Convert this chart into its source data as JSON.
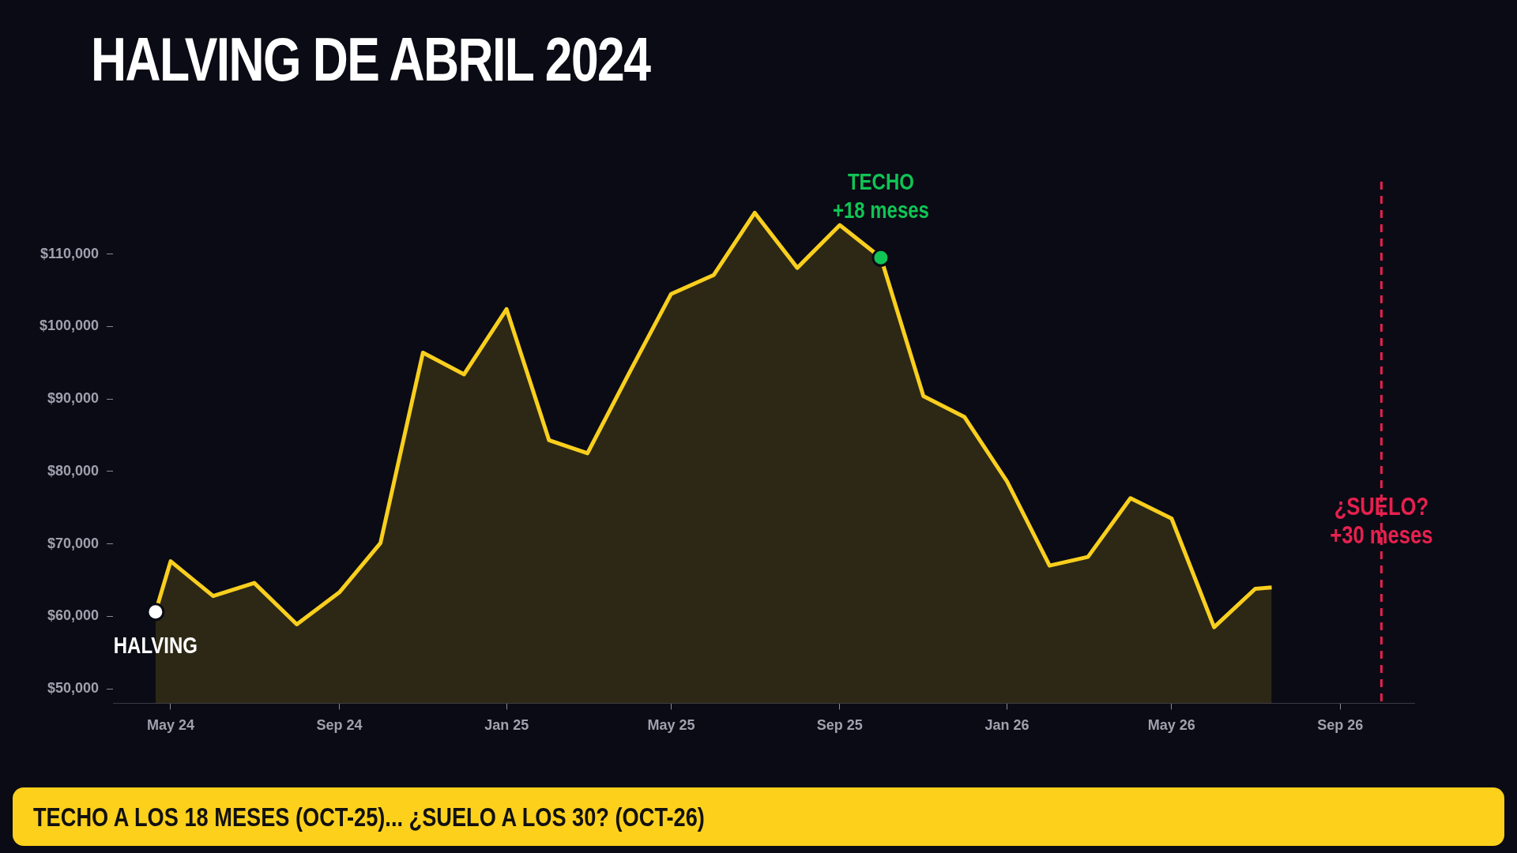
{
  "chart_data": {
    "type": "area",
    "title": "HALVING DE ABRIL 2024",
    "x": [
      "2024-04-20",
      "2024-05-01",
      "2024-06-01",
      "2024-07-01",
      "2024-08-01",
      "2024-09-01",
      "2024-10-01",
      "2024-11-01",
      "2024-12-01",
      "2025-01-01",
      "2025-02-01",
      "2025-03-01",
      "2025-04-01",
      "2025-05-01",
      "2025-06-01",
      "2025-07-01",
      "2025-08-01",
      "2025-09-01",
      "2025-10-01",
      "2025-11-01",
      "2025-12-01",
      "2026-01-01",
      "2026-02-01",
      "2026-03-01",
      "2026-04-01",
      "2026-05-01",
      "2026-06-01",
      "2026-07-01",
      "2026-07-13"
    ],
    "series": [
      {
        "color": "#f9cf1e",
        "values": [
          60600,
          67600,
          62800,
          64600,
          58900,
          63300,
          70100,
          96400,
          93400,
          102400,
          84300,
          82500,
          93800,
          104500,
          107100,
          115700,
          108100,
          114000,
          109500,
          90400,
          87500,
          78600,
          67000,
          68200,
          76300,
          73500,
          58500,
          63800,
          64000
        ]
      }
    ],
    "xlim": [
      "2024-03-20",
      "2026-10-25"
    ],
    "xticks": [
      {
        "value": "2024-05-01",
        "label": "May 24"
      },
      {
        "value": "2024-09-01",
        "label": "Sep 24"
      },
      {
        "value": "2025-01-01",
        "label": "Jan 25"
      },
      {
        "value": "2025-05-01",
        "label": "May 25"
      },
      {
        "value": "2025-09-01",
        "label": "Sep 25"
      },
      {
        "value": "2026-01-01",
        "label": "Jan 26"
      },
      {
        "value": "2026-05-01",
        "label": "May 26"
      },
      {
        "value": "2026-09-01",
        "label": "Sep 26"
      }
    ],
    "ylim": [
      48000,
      120000
    ],
    "yticks": [
      {
        "value": 50000,
        "label": "$50,000"
      },
      {
        "value": 60000,
        "label": "$60,000"
      },
      {
        "value": 70000,
        "label": "$70,000"
      },
      {
        "value": 80000,
        "label": "$80,000"
      },
      {
        "value": 90000,
        "label": "$90,000"
      },
      {
        "value": 100000,
        "label": "$100,000"
      },
      {
        "value": 110000,
        "label": "$110,000"
      }
    ],
    "grid": false,
    "legend": false,
    "marker": "none",
    "line_style": "solid",
    "ref_lines": [
      {
        "axis": "x",
        "value": "2026-10-01",
        "label": "¿SUELO?\n+30 meses",
        "color": "#e8204f",
        "line_style": "dashed"
      }
    ],
    "annotations": [
      {
        "text": "HALVING",
        "x": "2024-04-20",
        "y": 60600
      },
      {
        "text": "TECHO\n+18 meses",
        "x": "2025-10-01",
        "y": 109500
      },
      "TECHO A LOS 18 MESES (OCT-25)... ¿SUELO A LOS 30? (OCT-26)"
    ]
  }
}
